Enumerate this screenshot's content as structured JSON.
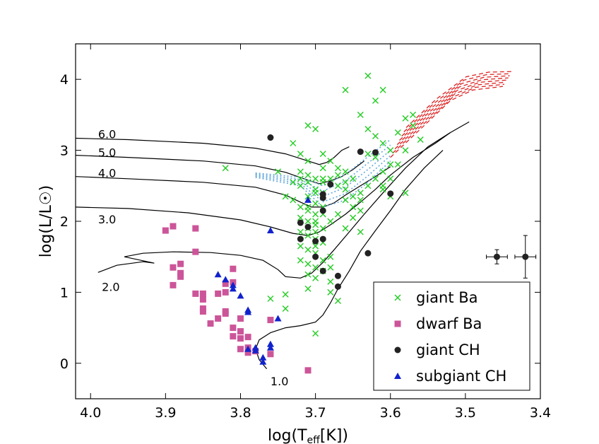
{
  "chart_data": {
    "type": "scatter",
    "title": "",
    "xlabel_main": "log(T",
    "xlabel_sub": "eff",
    "xlabel_tail": "[K])",
    "ylabel": "log(L/L☉)",
    "xlim": [
      4.02,
      3.4
    ],
    "ylim": [
      -0.5,
      4.5
    ],
    "x_ticks": [
      4.0,
      3.9,
      3.8,
      3.7,
      3.6,
      3.5,
      3.4
    ],
    "x_tick_labels": [
      "4.0",
      "3.9",
      "3.8",
      "3.7",
      "3.6",
      "3.5",
      "3.4"
    ],
    "y_ticks": [
      0,
      1,
      2,
      3,
      4
    ],
    "y_tick_labels": [
      "0",
      "1",
      "2",
      "3",
      "4"
    ],
    "legend_position": "lower-right",
    "series": [
      {
        "name": "giant Ba",
        "marker": "x",
        "color": "#22cc22",
        "points": [
          [
            3.73,
            3.1
          ],
          [
            3.71,
            3.35
          ],
          [
            3.7,
            3.3
          ],
          [
            3.69,
            2.95
          ],
          [
            3.72,
            2.95
          ],
          [
            3.71,
            2.85
          ],
          [
            3.72,
            2.7
          ],
          [
            3.7,
            2.6
          ],
          [
            3.69,
            2.75
          ],
          [
            3.71,
            2.55
          ],
          [
            3.72,
            2.5
          ],
          [
            3.7,
            2.45
          ],
          [
            3.69,
            2.4
          ],
          [
            3.71,
            2.35
          ],
          [
            3.73,
            2.3
          ],
          [
            3.7,
            2.25
          ],
          [
            3.72,
            2.2
          ],
          [
            3.69,
            2.2
          ],
          [
            3.71,
            2.15
          ],
          [
            3.7,
            2.1
          ],
          [
            3.72,
            2.05
          ],
          [
            3.71,
            2.0
          ],
          [
            3.7,
            1.95
          ],
          [
            3.69,
            1.9
          ],
          [
            3.72,
            1.85
          ],
          [
            3.71,
            1.8
          ],
          [
            3.7,
            1.75
          ],
          [
            3.69,
            1.7
          ],
          [
            3.72,
            1.65
          ],
          [
            3.71,
            1.6
          ],
          [
            3.7,
            1.55
          ],
          [
            3.68,
            1.5
          ],
          [
            3.72,
            1.45
          ],
          [
            3.71,
            1.4
          ],
          [
            3.7,
            1.35
          ],
          [
            3.69,
            1.3
          ],
          [
            3.71,
            1.25
          ],
          [
            3.7,
            1.2
          ],
          [
            3.68,
            1.15
          ],
          [
            3.71,
            1.05
          ],
          [
            3.68,
            1.0
          ],
          [
            3.67,
            0.88
          ],
          [
            3.7,
            0.42
          ],
          [
            3.74,
            0.97
          ],
          [
            3.74,
            0.77
          ],
          [
            3.76,
            0.91
          ],
          [
            3.68,
            2.6
          ],
          [
            3.67,
            2.5
          ],
          [
            3.66,
            2.45
          ],
          [
            3.66,
            2.3
          ],
          [
            3.65,
            2.2
          ],
          [
            3.67,
            2.1
          ],
          [
            3.68,
            2.0
          ],
          [
            3.66,
            1.9
          ],
          [
            3.65,
            2.05
          ],
          [
            3.64,
            2.15
          ],
          [
            3.64,
            2.4
          ],
          [
            3.63,
            2.5
          ],
          [
            3.62,
            2.6
          ],
          [
            3.61,
            2.7
          ],
          [
            3.62,
            2.9
          ],
          [
            3.6,
            3.0
          ],
          [
            3.61,
            3.1
          ],
          [
            3.63,
            3.3
          ],
          [
            3.64,
            3.5
          ],
          [
            3.62,
            3.7
          ],
          [
            3.61,
            3.85
          ],
          [
            3.63,
            4.05
          ],
          [
            3.66,
            3.85
          ],
          [
            3.58,
            3.45
          ],
          [
            3.57,
            3.35
          ],
          [
            3.59,
            3.25
          ],
          [
            3.56,
            3.15
          ],
          [
            3.58,
            3.0
          ],
          [
            3.59,
            2.8
          ],
          [
            3.6,
            2.6
          ],
          [
            3.61,
            2.5
          ],
          [
            3.64,
            1.85
          ],
          [
            3.6,
            2.35
          ],
          [
            3.67,
            2.75
          ],
          [
            3.68,
            2.85
          ],
          [
            3.75,
            2.7
          ],
          [
            3.74,
            2.35
          ],
          [
            3.82,
            2.75
          ],
          [
            3.73,
            2.55
          ],
          [
            3.71,
            2.2
          ],
          [
            3.69,
            2.55
          ],
          [
            3.67,
            2.65
          ],
          [
            3.66,
            2.7
          ],
          [
            3.65,
            2.6
          ],
          [
            3.7,
            2.0
          ],
          [
            3.7,
            1.85
          ],
          [
            3.7,
            1.65
          ],
          [
            3.69,
            1.45
          ],
          [
            3.68,
            1.35
          ],
          [
            3.71,
            2.65
          ],
          [
            3.72,
            2.6
          ],
          [
            3.69,
            2.6
          ],
          [
            3.7,
            2.4
          ],
          [
            3.71,
            1.9
          ],
          [
            3.57,
            3.5
          ],
          [
            3.62,
            3.2
          ],
          [
            3.63,
            2.95
          ],
          [
            3.61,
            2.45
          ],
          [
            3.66,
            2.55
          ],
          [
            3.64,
            2.3
          ],
          [
            3.65,
            2.35
          ],
          [
            3.58,
            2.4
          ],
          [
            3.6,
            2.8
          ],
          [
            3.69,
            2.1
          ]
        ]
      },
      {
        "name": "dwarf Ba",
        "marker": "square",
        "color": "#cc5599",
        "points": [
          [
            3.9,
            1.87
          ],
          [
            3.89,
            1.93
          ],
          [
            3.86,
            1.9
          ],
          [
            3.86,
            1.57
          ],
          [
            3.89,
            1.35
          ],
          [
            3.88,
            1.4
          ],
          [
            3.88,
            1.22
          ],
          [
            3.88,
            1.27
          ],
          [
            3.89,
            1.1
          ],
          [
            3.86,
            0.98
          ],
          [
            3.85,
            0.98
          ],
          [
            3.85,
            0.9
          ],
          [
            3.85,
            0.77
          ],
          [
            3.85,
            0.73
          ],
          [
            3.84,
            0.56
          ],
          [
            3.83,
            0.63
          ],
          [
            3.82,
            0.73
          ],
          [
            3.82,
            0.7
          ],
          [
            3.83,
            0.98
          ],
          [
            3.82,
            1.0
          ],
          [
            3.81,
            0.5
          ],
          [
            3.81,
            0.38
          ],
          [
            3.8,
            0.45
          ],
          [
            3.8,
            0.35
          ],
          [
            3.8,
            0.2
          ],
          [
            3.79,
            0.15
          ],
          [
            3.8,
            0.63
          ],
          [
            3.79,
            0.22
          ],
          [
            3.78,
            0.17
          ],
          [
            3.76,
            0.13
          ],
          [
            3.81,
            1.33
          ],
          [
            3.81,
            1.14
          ],
          [
            3.82,
            1.12
          ],
          [
            3.79,
            0.37
          ],
          [
            3.76,
            0.61
          ],
          [
            3.71,
            -0.1
          ]
        ]
      },
      {
        "name": "giant CH",
        "marker": "circle",
        "color": "#222222",
        "points": [
          [
            3.76,
            3.18
          ],
          [
            3.72,
            1.98
          ],
          [
            3.72,
            1.75
          ],
          [
            3.71,
            1.92
          ],
          [
            3.7,
            1.72
          ],
          [
            3.69,
            2.15
          ],
          [
            3.69,
            2.33
          ],
          [
            3.69,
            2.38
          ],
          [
            3.69,
            1.3
          ],
          [
            3.68,
            2.52
          ],
          [
            3.69,
            1.75
          ],
          [
            3.7,
            1.5
          ],
          [
            3.67,
            1.08
          ],
          [
            3.67,
            1.23
          ],
          [
            3.64,
            2.98
          ],
          [
            3.62,
            2.97
          ],
          [
            3.6,
            2.39
          ],
          [
            3.63,
            1.55
          ]
        ]
      },
      {
        "name": "subgiant CH",
        "marker": "triangle",
        "color": "#1122cc",
        "points": [
          [
            3.83,
            1.25
          ],
          [
            3.82,
            1.18
          ],
          [
            3.81,
            1.05
          ],
          [
            3.81,
            1.1
          ],
          [
            3.8,
            0.95
          ],
          [
            3.79,
            0.72
          ],
          [
            3.79,
            0.75
          ],
          [
            3.79,
            0.2
          ],
          [
            3.78,
            0.18
          ],
          [
            3.78,
            0.22
          ],
          [
            3.77,
            0.08
          ],
          [
            3.77,
            0.02
          ],
          [
            3.76,
            0.27
          ],
          [
            3.76,
            0.22
          ],
          [
            3.75,
            0.63
          ],
          [
            3.76,
            1.87
          ],
          [
            3.71,
            2.3
          ]
        ]
      }
    ],
    "error_bars": [
      {
        "x": 3.458,
        "y": 1.5,
        "x_err": 0.014,
        "y_err": 0.1
      },
      {
        "x": 3.42,
        "y": 1.5,
        "x_err": 0.014,
        "y_err": 0.3
      }
    ],
    "track_labels": [
      {
        "text": "6.0",
        "x": 3.99,
        "y": 3.23
      },
      {
        "text": "5.0",
        "x": 3.99,
        "y": 2.97
      },
      {
        "text": "4.0",
        "x": 3.99,
        "y": 2.68
      },
      {
        "text": "3.0",
        "x": 3.99,
        "y": 2.03
      },
      {
        "text": "2.0",
        "x": 3.985,
        "y": 1.08
      },
      {
        "text": "1.0",
        "x": 3.76,
        "y": -0.25
      }
    ],
    "evolutionary_tracks": [
      {
        "mass": "6.0",
        "points": [
          [
            4.02,
            3.17
          ],
          [
            3.95,
            3.15
          ],
          [
            3.85,
            3.1
          ],
          [
            3.78,
            3.03
          ],
          [
            3.74,
            2.95
          ],
          [
            3.71,
            2.85
          ],
          [
            3.695,
            2.8
          ],
          [
            3.685,
            2.83
          ],
          [
            3.675,
            2.9
          ],
          [
            3.665,
            3.0
          ],
          [
            3.655,
            3.05
          ]
        ]
      },
      {
        "mass": "5.0",
        "points": [
          [
            4.02,
            2.93
          ],
          [
            3.95,
            2.9
          ],
          [
            3.85,
            2.85
          ],
          [
            3.78,
            2.78
          ],
          [
            3.74,
            2.69
          ],
          [
            3.71,
            2.58
          ],
          [
            3.695,
            2.53
          ],
          [
            3.68,
            2.57
          ],
          [
            3.665,
            2.63
          ],
          [
            3.65,
            2.73
          ],
          [
            3.635,
            2.85
          ]
        ]
      },
      {
        "mass": "4.0",
        "points": [
          [
            4.02,
            2.63
          ],
          [
            3.95,
            2.6
          ],
          [
            3.85,
            2.55
          ],
          [
            3.78,
            2.48
          ],
          [
            3.74,
            2.37
          ],
          [
            3.72,
            2.27
          ],
          [
            3.705,
            2.2
          ],
          [
            3.69,
            2.2
          ],
          [
            3.675,
            2.26
          ],
          [
            3.66,
            2.37
          ],
          [
            3.64,
            2.5
          ],
          [
            3.62,
            2.63
          ],
          [
            3.6,
            2.77
          ]
        ]
      },
      {
        "mass": "3.0",
        "points": [
          [
            4.02,
            2.2
          ],
          [
            3.95,
            2.18
          ],
          [
            3.87,
            2.12
          ],
          [
            3.8,
            2.02
          ],
          [
            3.76,
            1.92
          ],
          [
            3.73,
            1.83
          ],
          [
            3.71,
            1.8
          ],
          [
            3.695,
            1.85
          ],
          [
            3.68,
            1.95
          ],
          [
            3.66,
            2.1
          ],
          [
            3.64,
            2.27
          ],
          [
            3.62,
            2.45
          ],
          [
            3.6,
            2.65
          ],
          [
            3.57,
            2.9
          ],
          [
            3.54,
            3.1
          ],
          [
            3.52,
            3.25
          ]
        ]
      },
      {
        "mass": "2.0",
        "points": [
          [
            3.99,
            1.28
          ],
          [
            3.965,
            1.38
          ],
          [
            3.93,
            1.43
          ],
          [
            3.915,
            1.41
          ],
          [
            3.955,
            1.5
          ],
          [
            3.93,
            1.55
          ],
          [
            3.89,
            1.57
          ],
          [
            3.84,
            1.56
          ],
          [
            3.8,
            1.52
          ],
          [
            3.77,
            1.45
          ],
          [
            3.75,
            1.32
          ],
          [
            3.74,
            1.22
          ],
          [
            3.72,
            1.2
          ],
          [
            3.705,
            1.27
          ],
          [
            3.69,
            1.42
          ],
          [
            3.675,
            1.6
          ],
          [
            3.655,
            1.85
          ],
          [
            3.635,
            2.1
          ],
          [
            3.61,
            2.4
          ],
          [
            3.58,
            2.75
          ],
          [
            3.55,
            3.05
          ],
          [
            3.52,
            3.25
          ],
          [
            3.495,
            3.4
          ]
        ]
      },
      {
        "mass": "1.0",
        "points": [
          [
            3.765,
            -0.08
          ],
          [
            3.775,
            0.05
          ],
          [
            3.78,
            0.2
          ],
          [
            3.775,
            0.33
          ],
          [
            3.76,
            0.43
          ],
          [
            3.74,
            0.5
          ],
          [
            3.72,
            0.53
          ],
          [
            3.7,
            0.58
          ],
          [
            3.69,
            0.68
          ],
          [
            3.68,
            0.85
          ],
          [
            3.67,
            1.05
          ],
          [
            3.655,
            1.3
          ],
          [
            3.64,
            1.58
          ],
          [
            3.62,
            1.87
          ],
          [
            3.6,
            2.15
          ],
          [
            3.58,
            2.45
          ],
          [
            3.555,
            2.75
          ],
          [
            3.53,
            3.0
          ]
        ]
      }
    ]
  },
  "legend": {
    "entries": [
      "giant Ba",
      "dwarf Ba",
      "giant CH",
      "subgiant CH"
    ]
  }
}
